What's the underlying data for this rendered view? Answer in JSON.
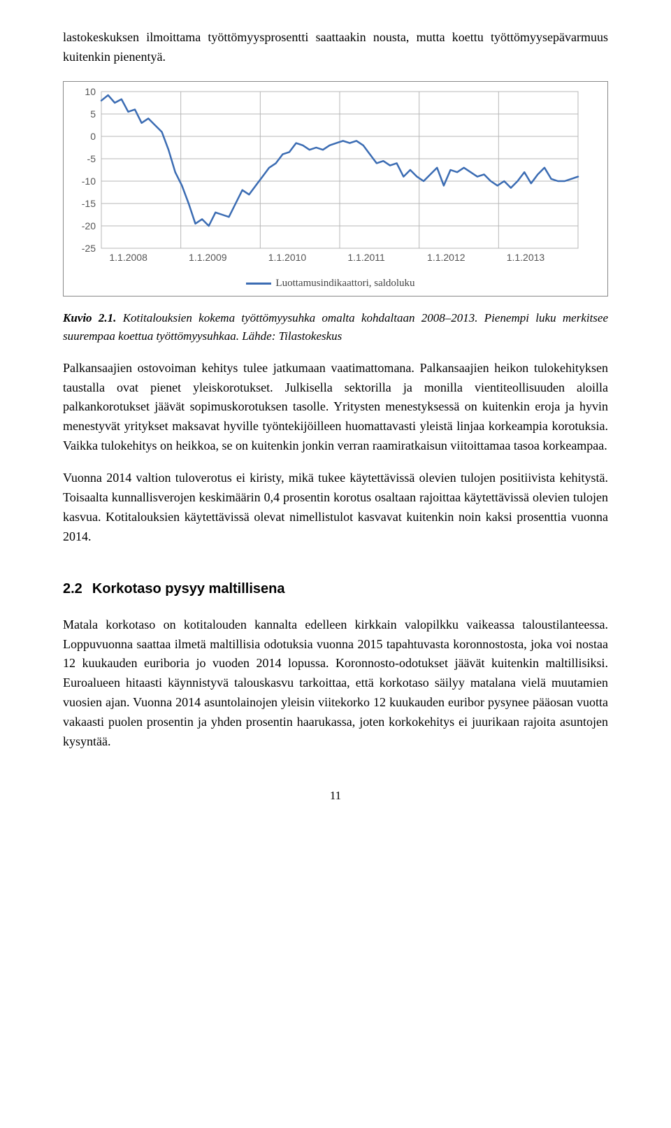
{
  "intro_para": "lastokeskuksen ilmoittama työttömyysprosentti saattaakin nousta, mutta koettu työttömyysepävarmuus kuitenkin pienentyä.",
  "chart": {
    "type": "line",
    "ylim": [
      -25,
      10
    ],
    "ytick_step": 5,
    "yticks": [
      10,
      5,
      0,
      -5,
      -10,
      -15,
      -20,
      -25
    ],
    "xlabels": [
      "1.1.2008",
      "1.1.2009",
      "1.1.2010",
      "1.1.2011",
      "1.1.2012",
      "1.1.2013"
    ],
    "background_color": "#ffffff",
    "grid_color": "#b7b7b7",
    "line_color": "#3b6cb3",
    "line_width": 2.5,
    "label_color": "#555555",
    "label_fontsize": 14,
    "values": [
      8.0,
      9.2,
      7.5,
      8.3,
      5.5,
      6.0,
      3.0,
      4.0,
      2.5,
      1.0,
      -3.0,
      -8.0,
      -11.0,
      -15.0,
      -19.5,
      -18.5,
      -20.0,
      -17.0,
      -17.5,
      -18.0,
      -15.0,
      -12.0,
      -13.0,
      -11.0,
      -9.0,
      -7.0,
      -6.0,
      -4.0,
      -3.5,
      -1.5,
      -2.0,
      -3.0,
      -2.5,
      -3.0,
      -2.0,
      -1.5,
      -1.0,
      -1.5,
      -1.0,
      -2.0,
      -4.0,
      -6.0,
      -5.5,
      -6.5,
      -6.0,
      -9.0,
      -7.5,
      -9.0,
      -10.0,
      -8.5,
      -7.0,
      -11.0,
      -7.5,
      -8.0,
      -7.0,
      -8.0,
      -9.0,
      -8.5,
      -10.0,
      -11.0,
      -10.0,
      -11.5,
      -10.0,
      -8.0,
      -10.5,
      -8.5,
      -7.0,
      -9.5,
      -10.0,
      -10.0,
      -9.5,
      -9.0
    ],
    "legend": "Luottamusindikaattori, saldoluku"
  },
  "caption": {
    "label": "Kuvio 2.1.",
    "italic_text": "Kotitalouksien kokema työttömyysuhka omalta kohdaltaan 2008–2013. Pienempi luku merkitsee suurempaa koettua työttömyysuhkaa. Lähde: Tilastokeskus"
  },
  "para2": "Palkansaajien ostovoiman kehitys tulee jatkumaan vaatimattomana. Palkansaajien heikon tulokehityksen taustalla ovat pienet yleiskorotukset. Julkisella sektorilla ja monilla vientiteollisuuden aloilla palkankorotukset jäävät sopimuskorotuksen tasolle. Yritysten menestyksessä on kuitenkin eroja ja hyvin menestyvät yritykset maksavat hyville työntekijöilleen huomattavasti yleistä linjaa korkeampia korotuksia. Vaikka tulokehitys on heikkoa, se on kuitenkin jonkin verran raamiratkaisun viitoittamaa tasoa korkeampaa.",
  "para3": "Vuonna 2014 valtion tuloverotus ei kiristy, mikä tukee käytettävissä olevien tulojen positiivista kehitystä. Toisaalta kunnallisverojen keskimäärin 0,4 prosentin korotus osaltaan rajoittaa käytettävissä olevien tulojen kasvua. Kotitalouksien käytettävissä olevat nimellistulot kasvavat kuitenkin noin kaksi prosenttia vuonna 2014.",
  "section": {
    "num": "2.2",
    "title": "Korkotaso pysyy maltillisena"
  },
  "para4": "Matala korkotaso on kotitalouden kannalta edelleen kirkkain valopilkku vaikeassa taloustilanteessa. Loppuvuonna saattaa ilmetä maltillisia odotuksia vuonna 2015 tapahtuvasta koronnostosta, joka voi nostaa 12 kuukauden euriboria jo vuoden 2014 lopussa. Koronnosto-odotukset jäävät kuitenkin maltillisiksi. Euroalueen hitaasti käynnistyvä talouskasvu tarkoittaa, että korkotaso säilyy matalana vielä muutamien vuosien ajan. Vuonna 2014 asuntolainojen yleisin viitekorko 12 kuukauden euribor pysynee pääosan vuotta vakaasti puolen prosentin ja yhden prosentin haarukassa, joten korkokehitys ei juurikaan rajoita asuntojen kysyntää.",
  "pagenum": "11"
}
